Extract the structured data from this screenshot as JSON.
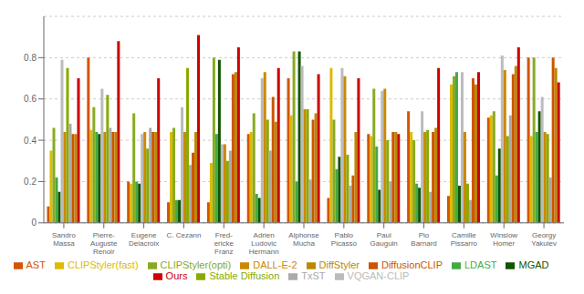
{
  "chart_data": {
    "type": "bar",
    "categories": [
      "Sandro\nMassa",
      "Pierre-\nAuguste\nRenoir",
      "Eugene\nDelacroix",
      "C. Cezann",
      "Fred-\nericke\nFranz",
      "Adrien\nLudovic\nHermann",
      "Alphonse\nMucha",
      "Pablo\nPicasso",
      "Paul\nGauguin",
      "Pio\nBarnard",
      "Camille\nPissarro",
      "Winslow\nHomer",
      "Georgy\nYakulev"
    ],
    "series": [
      {
        "name": "AST",
        "color": "#d45500",
        "values": [
          0.08,
          0.8,
          0.2,
          0.1,
          0.1,
          0.43,
          0.7,
          0.12,
          0.43,
          0.54,
          0.13,
          0.51,
          0.8
        ]
      },
      {
        "name": "CLIPStyler(fast)",
        "color": "#ddbb00",
        "values": [
          0.35,
          0.45,
          0.19,
          0.44,
          0.29,
          0.44,
          0.52,
          0.75,
          0.42,
          0.44,
          0.67,
          0.52,
          0.42
        ]
      },
      {
        "name": "CLIPStyler(opti)",
        "color": "#88aa22",
        "values": [
          0.46,
          0.56,
          0.53,
          0.46,
          0.8,
          0.53,
          0.83,
          0.5,
          0.65,
          0.4,
          0.71,
          0.54,
          0.8
        ]
      },
      {
        "name": "LDAST",
        "color": "#44aa44",
        "values": [
          0.22,
          0.44,
          0.2,
          0.11,
          0.43,
          0.14,
          0.2,
          0.26,
          0.37,
          0.19,
          0.73,
          0.23,
          0.44
        ]
      },
      {
        "name": "MGAD",
        "color": "#115500",
        "values": [
          0.15,
          0.43,
          0.19,
          0.11,
          0.79,
          0.12,
          0.83,
          0.32,
          0.16,
          0.17,
          0.18,
          0.36,
          0.54
        ]
      },
      {
        "name": "VQGAN-CLIP",
        "color": "#bbbbbb",
        "values": [
          0.79,
          0.65,
          0.43,
          0.56,
          0.38,
          0.7,
          0.76,
          0.75,
          0.64,
          0.54,
          0.73,
          0.81,
          0.61
        ]
      },
      {
        "name": "DALL-E-2",
        "color": "#cc8800",
        "values": [
          0.44,
          0.44,
          0.44,
          0.44,
          0.38,
          0.73,
          0.55,
          0.71,
          0.65,
          0.44,
          0.44,
          0.74,
          0.44
        ]
      },
      {
        "name": "Stable Diffusion",
        "color": "#88aa00",
        "values": [
          0.75,
          0.62,
          0.36,
          0.75,
          0.3,
          0.5,
          0.55,
          0.33,
          0.4,
          0.45,
          0.19,
          0.42,
          0.43
        ]
      },
      {
        "name": "TxST",
        "color": "#aaaaaa",
        "values": [
          0.48,
          0.46,
          0.46,
          0.28,
          0.35,
          0.35,
          0.21,
          0.18,
          0.2,
          0.15,
          0.11,
          0.52,
          0.22
        ]
      },
      {
        "name": "DiffusionCLIP",
        "color": "#cc5500",
        "values": [
          0.43,
          0.44,
          0.44,
          0.34,
          0.72,
          0.61,
          0.5,
          0.23,
          0.44,
          0.44,
          0.7,
          0.72,
          0.8
        ]
      },
      {
        "name": "DiffStyler",
        "color": "#bb8800",
        "values": [
          0.43,
          0.44,
          0.44,
          0.44,
          0.73,
          0.49,
          0.53,
          0.44,
          0.44,
          0.46,
          0.67,
          0.76,
          0.75
        ]
      },
      {
        "name": "Ours",
        "color": "#cc0000",
        "values": [
          0.7,
          0.88,
          0.7,
          0.91,
          0.85,
          0.75,
          0.72,
          0.7,
          0.43,
          0.75,
          0.73,
          0.85,
          0.68
        ]
      }
    ],
    "ylim": [
      0,
      1.0
    ],
    "yticks": [
      0,
      0.2,
      0.4,
      0.6,
      0.8
    ],
    "grid": true,
    "legend": "bottom"
  }
}
